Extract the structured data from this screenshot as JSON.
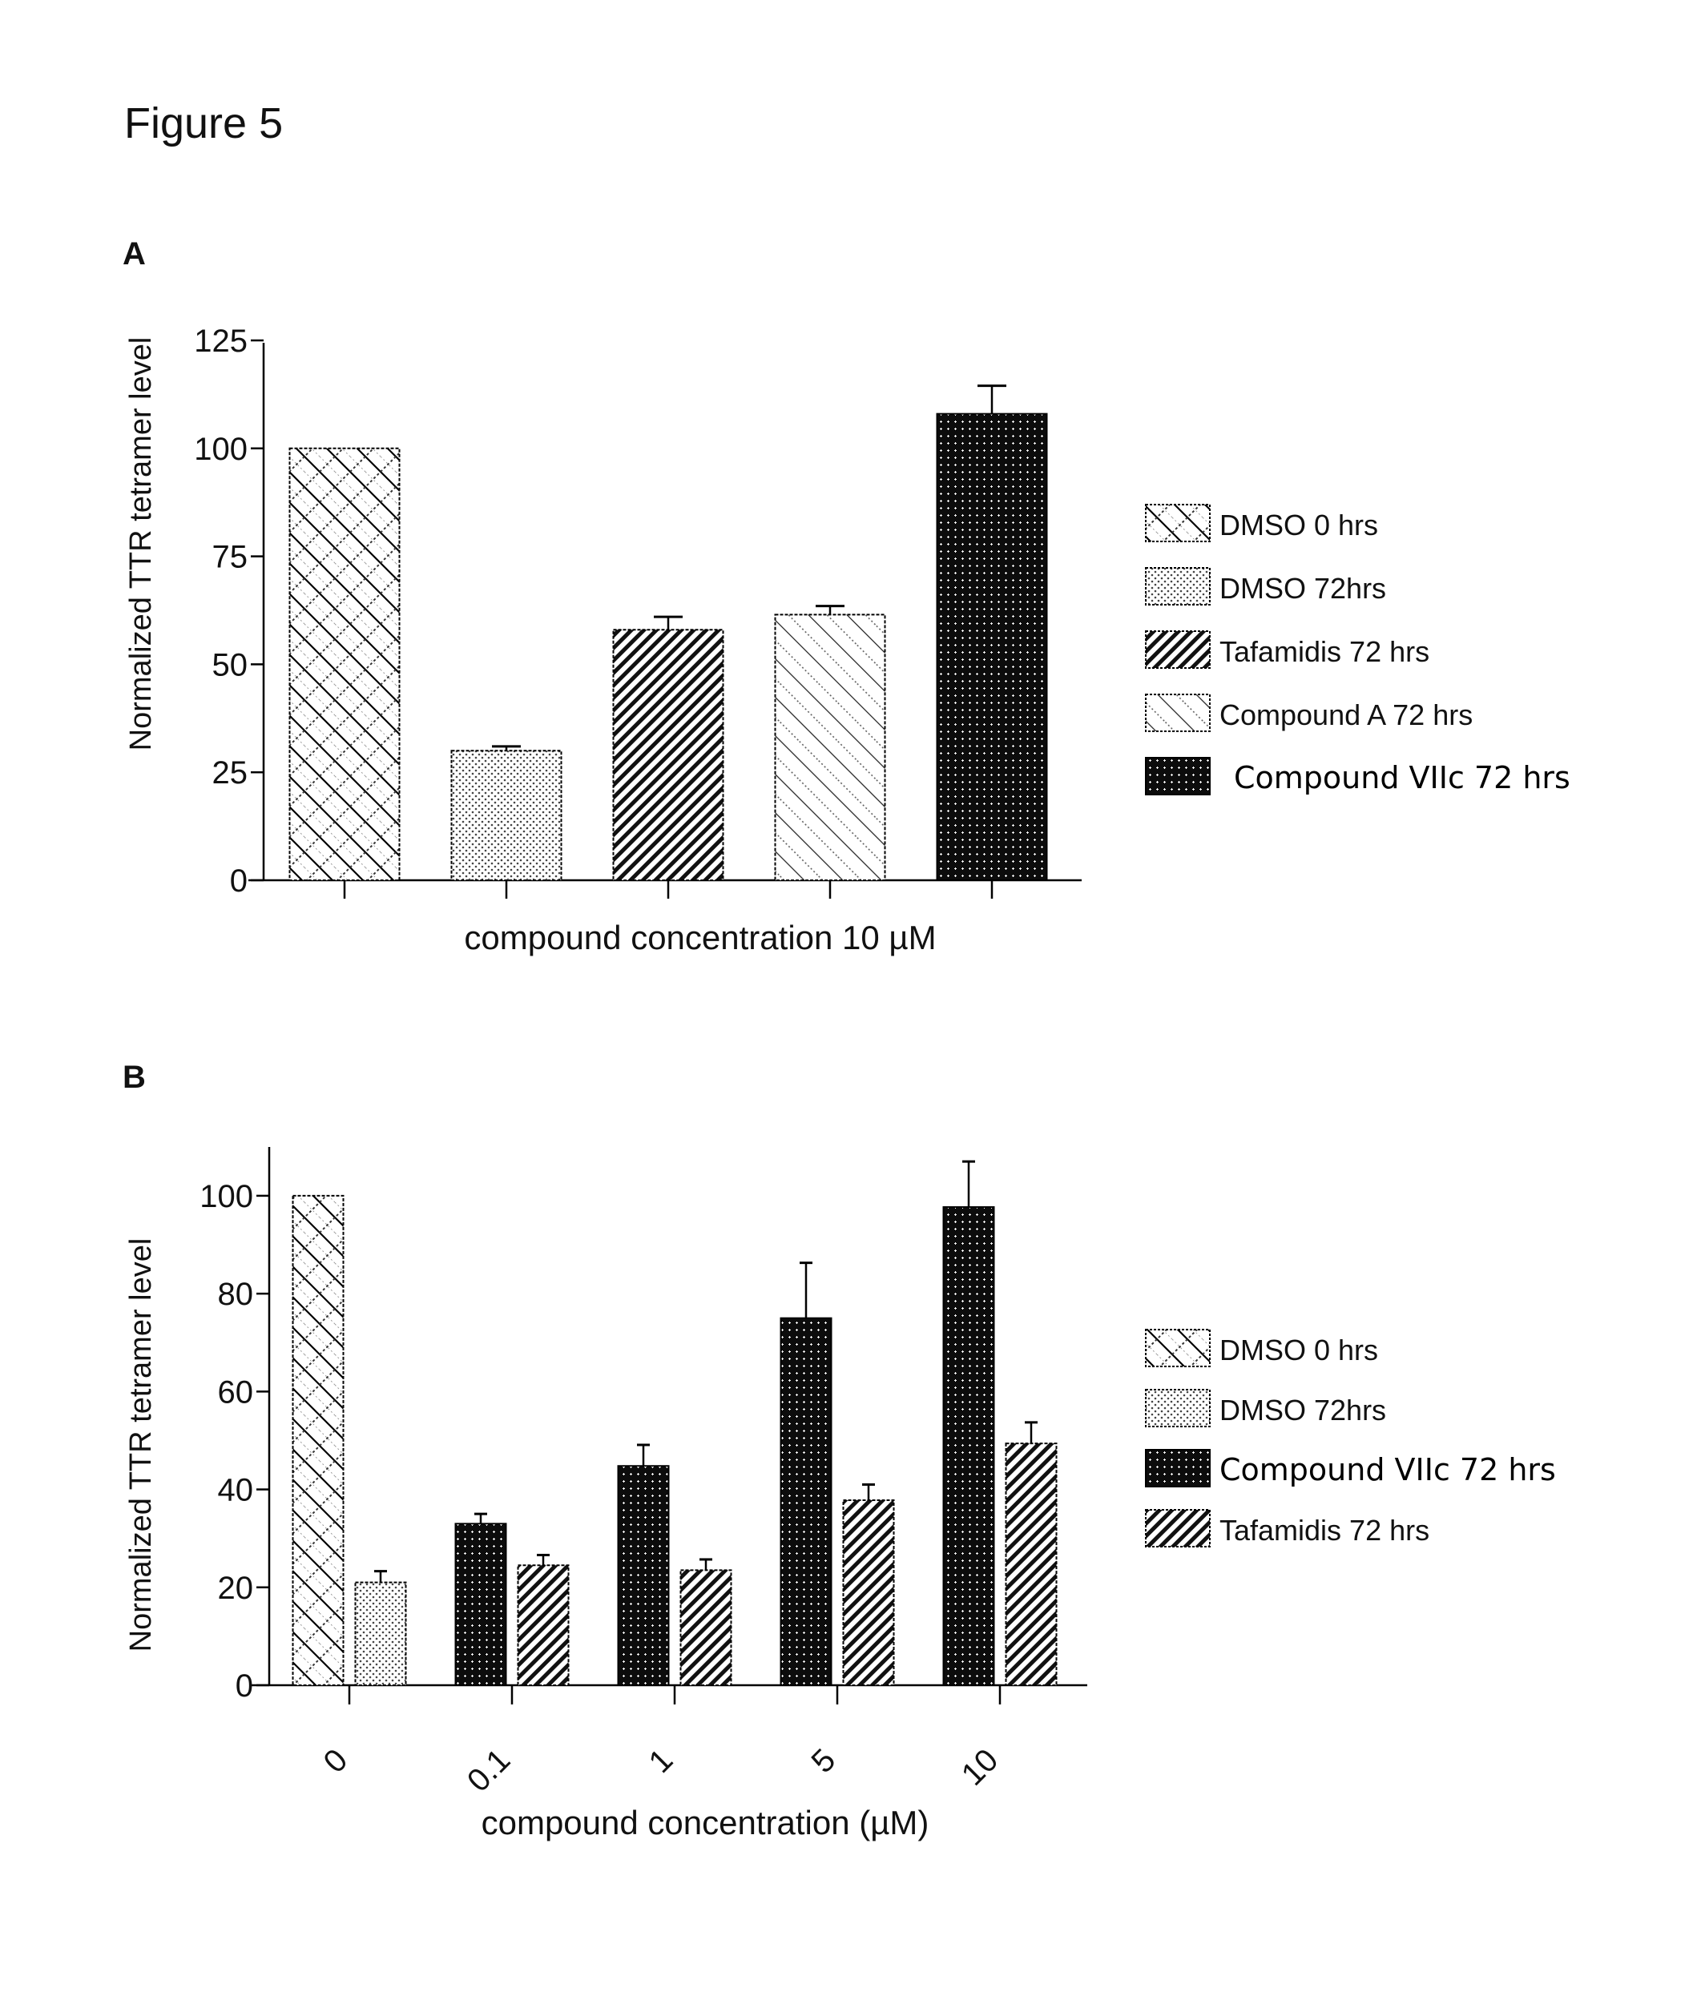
{
  "figure_title": "Figure 5",
  "chart_data": [
    {
      "panel": "A",
      "type": "bar",
      "title": "",
      "xlabel": "compound concentration 10 µM",
      "ylabel": "Normalized TTR tetramer level",
      "ylim": [
        0,
        125
      ],
      "yticks": [
        0,
        25,
        50,
        75,
        100,
        125
      ],
      "grid": false,
      "legend_position": "right",
      "categories": [
        "DMSO 0 hrs",
        "DMSO 72hrs",
        "Tafamidis 72 hrs",
        "Compound A 72 hrs",
        "Compound VIIc 72 hrs"
      ],
      "series": [
        {
          "name": "DMSO 0 hrs",
          "pattern": "crosshatch",
          "values": [
            100
          ],
          "error_upper": [
            null
          ]
        },
        {
          "name": "DMSO 72hrs",
          "pattern": "dots",
          "values": [
            30
          ],
          "error_upper": [
            31
          ]
        },
        {
          "name": "Tafamidis 72 hrs",
          "pattern": "dense-diagonal",
          "values": [
            58
          ],
          "error_upper": [
            61
          ]
        },
        {
          "name": "Compound A 72 hrs",
          "pattern": "wide-diagonal",
          "values": [
            61.5
          ],
          "error_upper": [
            63.5
          ]
        },
        {
          "name": "Compound VIIc 72 hrs",
          "pattern": "dark-dots",
          "values": [
            108
          ],
          "error_upper": [
            114.5
          ]
        }
      ],
      "bar_values": [
        100,
        30,
        58,
        61.5,
        108
      ],
      "error_upper": [
        null,
        31,
        61,
        63.5,
        114.5
      ],
      "legend": [
        {
          "label": "DMSO 0 hrs",
          "pattern": "crosshatch"
        },
        {
          "label": "DMSO 72hrs",
          "pattern": "dots"
        },
        {
          "label": "Tafamidis 72 hrs",
          "pattern": "dense-diagonal"
        },
        {
          "label": "Compound A 72 hrs",
          "pattern": "wide-diagonal"
        },
        {
          "label": "Compound VIIc 72 hrs",
          "pattern": "dark-dots"
        }
      ]
    },
    {
      "panel": "B",
      "type": "bar",
      "title": "",
      "xlabel": "compound concentration (µM)",
      "ylabel": "Normalized TTR tetramer level",
      "ylim": [
        0,
        110
      ],
      "yticks": [
        0,
        20,
        40,
        60,
        80,
        100
      ],
      "grid": false,
      "legend_position": "right",
      "categories": [
        "0",
        "0.1",
        "1",
        "5",
        "10"
      ],
      "groups": [
        {
          "category": "0",
          "bars": [
            {
              "series": "DMSO 0 hrs",
              "pattern": "crosshatch",
              "value": 100,
              "error_upper": null
            },
            {
              "series": "DMSO 72hrs",
              "pattern": "dots",
              "value": 21,
              "error_upper": 23.3
            }
          ]
        },
        {
          "category": "0.1",
          "bars": [
            {
              "series": "Compound VIIc 72 hrs",
              "pattern": "dark-dots",
              "value": 33,
              "error_upper": 35
            },
            {
              "series": "Tafamidis 72 hrs",
              "pattern": "dense-diagonal",
              "value": 24.5,
              "error_upper": 26.6
            }
          ]
        },
        {
          "category": "1",
          "bars": [
            {
              "series": "Compound VIIc 72 hrs",
              "pattern": "dark-dots",
              "value": 44.8,
              "error_upper": 49.1
            },
            {
              "series": "Tafamidis 72 hrs",
              "pattern": "dense-diagonal",
              "value": 23.5,
              "error_upper": 25.7
            }
          ]
        },
        {
          "category": "5",
          "bars": [
            {
              "series": "Compound VIIc 72 hrs",
              "pattern": "dark-dots",
              "value": 75,
              "error_upper": 86.3
            },
            {
              "series": "Tafamidis 72 hrs",
              "pattern": "dense-diagonal",
              "value": 37.8,
              "error_upper": 41
            }
          ]
        },
        {
          "category": "10",
          "bars": [
            {
              "series": "Compound VIIc 72 hrs",
              "pattern": "dark-dots",
              "value": 97.7,
              "error_upper": 107
            },
            {
              "series": "Tafamidis 72 hrs",
              "pattern": "dense-diagonal",
              "value": 49.4,
              "error_upper": 53.7
            }
          ]
        }
      ],
      "legend": [
        {
          "label": "DMSO 0 hrs",
          "pattern": "crosshatch"
        },
        {
          "label": "DMSO 72hrs",
          "pattern": "dots"
        },
        {
          "label": "Compound VIIc 72 hrs",
          "pattern": "dark-dots"
        },
        {
          "label": "Tafamidis 72 hrs",
          "pattern": "dense-diagonal"
        }
      ]
    }
  ]
}
